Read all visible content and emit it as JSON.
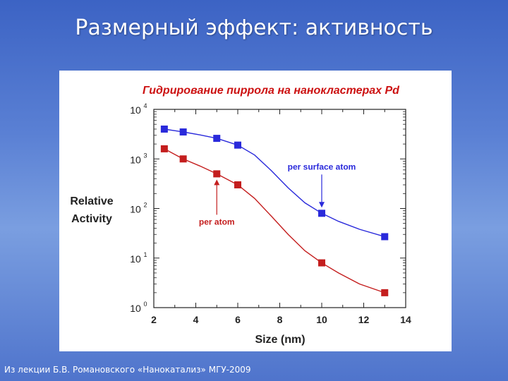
{
  "slide": {
    "title": "Размерный эффект: активность",
    "footer": "Из лекции Б.В. Романовского «Нанокатализ» МГУ-2009"
  },
  "chart_data": {
    "type": "line",
    "title": "Гидрирование пиррола на нанокластерах Pd",
    "xlabel": "Size (nm)",
    "ylabel_line1": "Relative",
    "ylabel_line2": "Activity",
    "xlim": [
      2,
      14
    ],
    "ylim": [
      1,
      10000
    ],
    "yscale": "log",
    "x_ticks": [
      2,
      4,
      6,
      8,
      10,
      12,
      14
    ],
    "y_ticks": [
      {
        "base": "10",
        "exp": "0",
        "value": 1
      },
      {
        "base": "10",
        "exp": "1",
        "value": 10
      },
      {
        "base": "10",
        "exp": "2",
        "value": 100
      },
      {
        "base": "10",
        "exp": "3",
        "value": 1000
      },
      {
        "base": "10",
        "exp": "4",
        "value": 10000
      }
    ],
    "grid": false,
    "series": [
      {
        "name": "per surface atom",
        "color": "#2a2adb",
        "points": [
          {
            "x": 2.5,
            "y": 4000
          },
          {
            "x": 3.4,
            "y": 3500
          },
          {
            "x": 5.0,
            "y": 2600
          },
          {
            "x": 6.0,
            "y": 1900
          },
          {
            "x": 10.0,
            "y": 80
          },
          {
            "x": 13.0,
            "y": 27
          }
        ],
        "curve": [
          [
            2.5,
            4000
          ],
          [
            3.4,
            3500
          ],
          [
            4.2,
            3050
          ],
          [
            5.0,
            2600
          ],
          [
            6.0,
            1900
          ],
          [
            6.8,
            1200
          ],
          [
            7.6,
            580
          ],
          [
            8.4,
            260
          ],
          [
            9.2,
            130
          ],
          [
            10.0,
            80
          ],
          [
            10.8,
            55
          ],
          [
            11.8,
            38
          ],
          [
            13.0,
            27
          ]
        ],
        "annotation": {
          "text": "per surface atom",
          "x": 10.0,
          "y": 80
        }
      },
      {
        "name": "per atom",
        "color": "#c41e1e",
        "points": [
          {
            "x": 2.5,
            "y": 1600
          },
          {
            "x": 3.4,
            "y": 1000
          },
          {
            "x": 5.0,
            "y": 500
          },
          {
            "x": 6.0,
            "y": 300
          },
          {
            "x": 10.0,
            "y": 8
          },
          {
            "x": 13.0,
            "y": 2
          }
        ],
        "curve": [
          [
            2.5,
            1600
          ],
          [
            3.4,
            1000
          ],
          [
            4.2,
            720
          ],
          [
            5.0,
            500
          ],
          [
            6.0,
            300
          ],
          [
            6.8,
            160
          ],
          [
            7.6,
            70
          ],
          [
            8.4,
            30
          ],
          [
            9.2,
            14
          ],
          [
            10.0,
            8
          ],
          [
            10.8,
            5
          ],
          [
            11.8,
            3
          ],
          [
            13.0,
            2
          ]
        ],
        "annotation": {
          "text": "per atom",
          "x": 5.0,
          "y": 500
        }
      }
    ]
  }
}
